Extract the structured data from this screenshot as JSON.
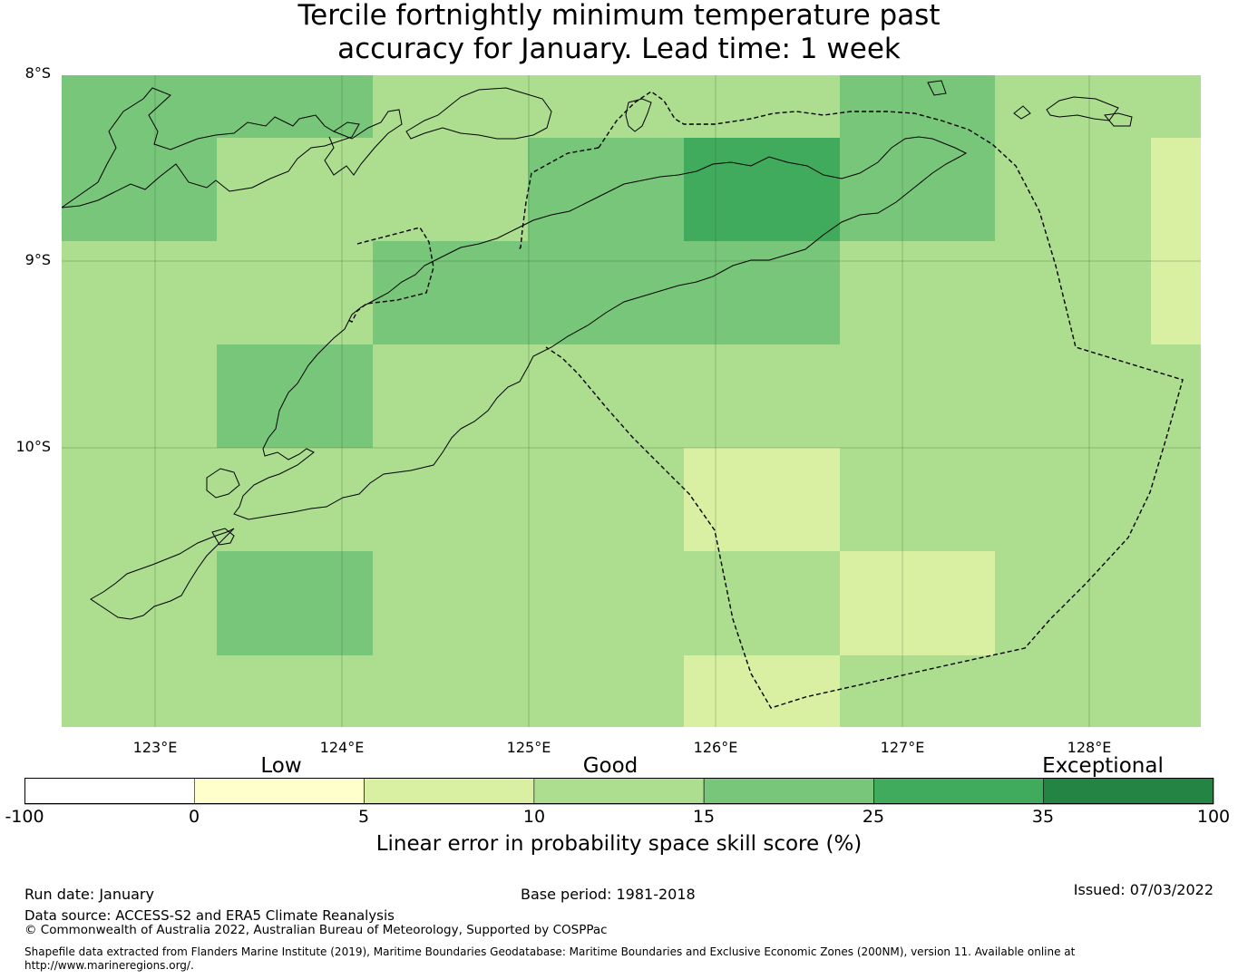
{
  "title": {
    "line1": "Tercile fortnightly minimum temperature past",
    "line2": "accuracy for January. Lead time: 1 week"
  },
  "map": {
    "lat_labels": [
      "8°S",
      "9°S",
      "10°S"
    ],
    "lon_labels": [
      "123°E",
      "124°E",
      "125°E",
      "126°E",
      "127°E",
      "128°E"
    ],
    "grid_score_class": [
      [
        4,
        4,
        3,
        3,
        3,
        4,
        3,
        3
      ],
      [
        4,
        3,
        3,
        4,
        5,
        4,
        3,
        2
      ],
      [
        3,
        3,
        4,
        4,
        4,
        3,
        3,
        2
      ],
      [
        3,
        4,
        3,
        3,
        3,
        3,
        3,
        3
      ],
      [
        3,
        3,
        3,
        3,
        2,
        3,
        3,
        3
      ],
      [
        3,
        4,
        3,
        3,
        3,
        2,
        3,
        3
      ],
      [
        3,
        3,
        3,
        3,
        2,
        3,
        3,
        3
      ]
    ]
  },
  "colorbar": {
    "category_labels": [
      "Low",
      "Good",
      "Exceptional"
    ],
    "ticks": [
      "-100",
      "0",
      "5",
      "10",
      "15",
      "25",
      "35",
      "100"
    ],
    "colors": [
      "#ffffff",
      "#ffffcc",
      "#d9f0a3",
      "#addd8e",
      "#78c679",
      "#41ab5d",
      "#238443"
    ],
    "label": "Linear error in probability space skill score (%)"
  },
  "footer": {
    "run_date": "Run date: January",
    "base_period": "Base period: 1981-2018",
    "issued": "Issued: 07/03/2022",
    "data_source": "Data source: ACCESS-S2 and ERA5 Climate Reanalysis",
    "copyright": "© Commonwealth of Australia 2022, Australian Bureau of Meteorology, Supported by COSPPac",
    "shapefile_line1": "Shapefile data extracted from Flanders Marine Institute (2019), Maritime Boundaries Geodatabase: Maritime Boundaries and Exclusive Economic Zones (200NM), version 11. Available online at",
    "shapefile_line2": "http://www.marineregions.org/."
  }
}
